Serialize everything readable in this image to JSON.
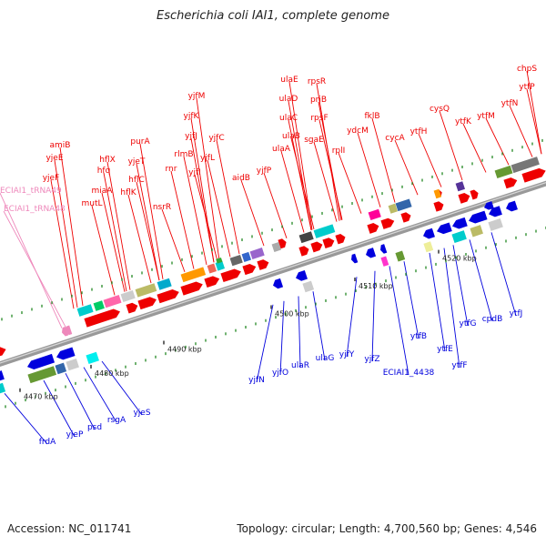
{
  "title": "Escherichia coli IAI1, complete genome",
  "footer": {
    "accession": "Accession: NC_011741",
    "summary": "Topology: circular; Length: 4,700,560 bp; Genes: 4,546"
  },
  "colors": {
    "forward": "#ee0000",
    "reverse": "#0000dd",
    "rna": "#ee88bb",
    "backbone": "#888888"
  },
  "ticks": [
    "4470 kbp",
    "4480 kbp",
    "4490 kbp",
    "4500 kbp",
    "4510 kbp",
    "4520 kbp"
  ],
  "labels_top": [
    "amiB",
    "yjeE",
    "yjeF",
    "mutL",
    "miaA",
    "hfq",
    "hflX",
    "hflK",
    "hflC",
    "yjeT",
    "purA",
    "nsrR",
    "rnr",
    "rlmB",
    "yjfI",
    "yjfJ",
    "yjfK",
    "yjfL",
    "yjfM",
    "yjfC",
    "aidB",
    "yjfP",
    "ulaA",
    "ulaB",
    "ulaC",
    "ulaD",
    "ulaE",
    "sgaE",
    "rpsF",
    "priB",
    "rpsR",
    "rplI",
    "ydcM",
    "fklB",
    "cycA",
    "ytfH",
    "cysQ",
    "ytfK",
    "ytfM",
    "ytfN",
    "ytfP",
    "chpS"
  ],
  "labels_rna": [
    "ECIAI1_tRNA49",
    "ECIAI1_tRNA48"
  ],
  "labels_bottom": [
    "frdA",
    "yjeP",
    "psd",
    "rsgA",
    "yjeS",
    "yjfN",
    "yjfO",
    "ulaR",
    "ulaG",
    "yjfY",
    "yjfZ",
    "ECIAI1_4438",
    "ytfB",
    "ytfE",
    "ytfF",
    "ytfG",
    "cpdB",
    "ytfJ"
  ]
}
